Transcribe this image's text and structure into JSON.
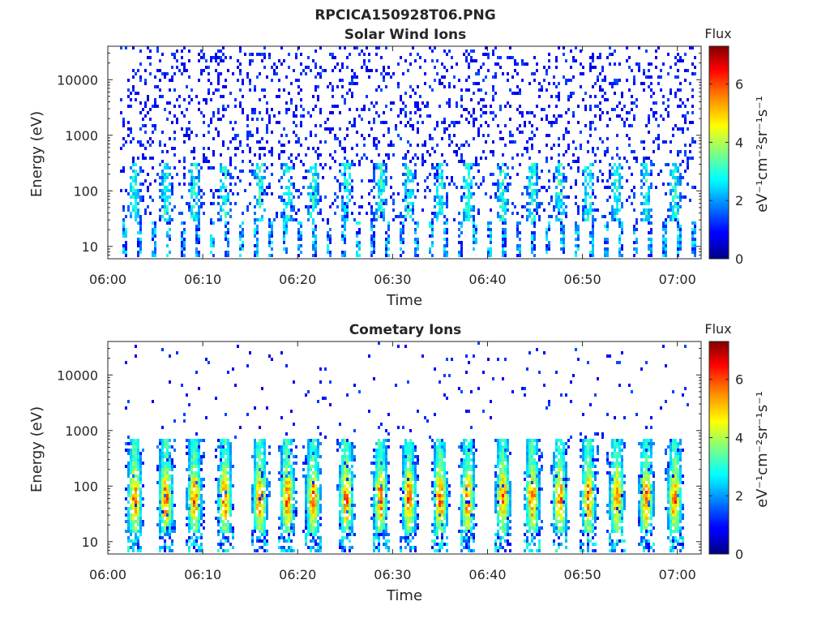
{
  "figure": {
    "title": "RPCICA150928T06.PNG"
  },
  "panels": [
    {
      "title": "Solar Wind Ions",
      "xlabel": "Time",
      "ylabel": "Energy (eV)",
      "colorbar_title": "Flux",
      "colorbar_label": "eV⁻¹cm⁻²sr⁻¹s⁻¹"
    },
    {
      "title": "Cometary Ions",
      "xlabel": "Time",
      "ylabel": "Energy (eV)",
      "colorbar_title": "Flux",
      "colorbar_label": "eV⁻¹cm⁻²sr⁻¹s⁻¹"
    }
  ],
  "chart_data": [
    {
      "type": "heatmap",
      "title": "Solar Wind Ions",
      "xlabel": "Time",
      "ylabel": "Energy (eV)",
      "x_ticks": [
        "06:00",
        "06:10",
        "06:20",
        "06:30",
        "06:40",
        "06:50",
        "07:00"
      ],
      "x_range_minutes": [
        0,
        62.5
      ],
      "y_scale": "log",
      "y_ticks": [
        "10",
        "100",
        "1000",
        "10000"
      ],
      "y_range": [
        6,
        40000
      ],
      "colorbar": {
        "title": "Flux",
        "label": "eV⁻¹cm⁻²sr⁻¹s⁻¹",
        "ticks": [
          "0",
          "2",
          "4",
          "6"
        ],
        "range": [
          0,
          7.3
        ],
        "colormap": "jet"
      },
      "bursts_minutes": [
        2.7,
        6.0,
        9.0,
        12.2,
        15.9,
        18.8,
        21.5,
        25.0,
        28.6,
        31.6,
        34.9,
        37.8,
        41.5,
        44.6,
        47.5,
        50.5,
        53.5,
        56.6,
        59.6
      ],
      "description_values": {
        "dominant_flux_level": 1.5,
        "peak_flux_level": 3.3,
        "burst_energy_range_eV": [
          30,
          300
        ],
        "background_energy_range_eV": [
          300,
          30000
        ]
      }
    },
    {
      "type": "heatmap",
      "title": "Cometary Ions",
      "xlabel": "Time",
      "ylabel": "Energy (eV)",
      "x_ticks": [
        "06:00",
        "06:10",
        "06:20",
        "06:30",
        "06:40",
        "06:50",
        "07:00"
      ],
      "x_range_minutes": [
        0,
        62.5
      ],
      "y_scale": "log",
      "y_ticks": [
        "10",
        "100",
        "1000",
        "10000"
      ],
      "y_range": [
        6,
        40000
      ],
      "colorbar": {
        "title": "Flux",
        "label": "eV⁻¹cm⁻²sr⁻¹s⁻¹",
        "ticks": [
          "0",
          "2",
          "4",
          "6"
        ],
        "range": [
          0,
          7.3
        ],
        "colormap": "jet"
      },
      "bursts_minutes": [
        2.7,
        6.0,
        9.0,
        12.2,
        15.9,
        18.8,
        21.5,
        25.0,
        28.6,
        31.6,
        34.9,
        37.8,
        41.5,
        44.6,
        47.5,
        50.5,
        53.5,
        56.6,
        59.6
      ],
      "description_values": {
        "dominant_flux_level": 4.0,
        "peak_flux_level": 5.6,
        "burst_energy_range_eV": [
          20,
          500
        ],
        "burst_peak_energy_eV": 60
      }
    }
  ]
}
